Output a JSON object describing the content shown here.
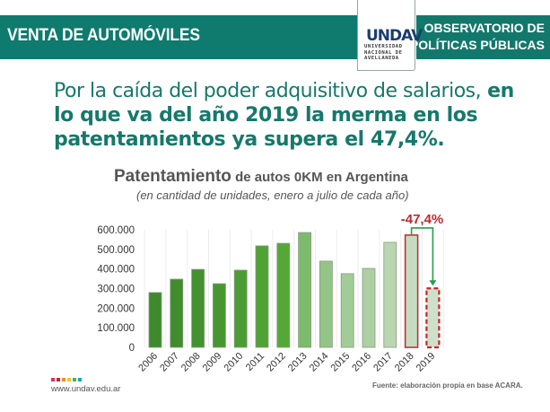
{
  "header": {
    "section_title": "VENTA DE AUTOMÓVILES",
    "observatory_line1": "OBSERVATORIO DE",
    "observatory_line2": "POLÍTICAS PÚBLICAS",
    "logo_mark": "UNDAV",
    "logo_line1": "UNIVERSIDAD",
    "logo_line2": "NACIONAL DE",
    "logo_line3": "AVELLANEDA",
    "banner_color": "#0f7a6e"
  },
  "headline": {
    "light_text": "Por la caída del poder adquisitivo de salarios,",
    "bold_text": "en lo que va del año 2019 la merma en los patentamientos ya supera el 47,4%."
  },
  "chart_data": {
    "type": "bar",
    "title_main": "Patentamiento",
    "title_rest": " de autos 0KM en Argentina",
    "subtitle": "(en cantidad de unidades, enero a julio de cada año)",
    "xlabel": "",
    "ylabel": "",
    "ylim": [
      0,
      600000
    ],
    "yticks": [
      0,
      100000,
      200000,
      300000,
      400000,
      500000,
      600000
    ],
    "ytick_labels": [
      "0",
      "100.000",
      "200.000",
      "300.000",
      "400.000",
      "500.000",
      "600.000"
    ],
    "grid": "vertical",
    "categories": [
      "2006",
      "2007",
      "2008",
      "2009",
      "2010",
      "2011",
      "2012",
      "2013",
      "2014",
      "2015",
      "2016",
      "2017",
      "2018",
      "2019"
    ],
    "values": [
      280000,
      348000,
      398000,
      325000,
      394000,
      518000,
      531000,
      586000,
      440000,
      376000,
      403000,
      536000,
      573000,
      301000
    ],
    "bar_colors": [
      "#3d8a2a",
      "#3f8d2b",
      "#43922e",
      "#479730",
      "#4b9c32",
      "#4fa234",
      "#53a836",
      "#7cbb6a",
      "#93c587",
      "#a2cc97",
      "#adcfa3",
      "#b9d6b1",
      "#c6dcc0",
      "#cfe0ca"
    ],
    "highlight": {
      "from": "2018",
      "to": "2019",
      "label": "-47,4%",
      "label_color": "#c0272d",
      "arrow_color": "#22a04b"
    }
  },
  "footer": {
    "url": "www.undav.edu.ar",
    "source": "Fuente: elaboración propia en base ACARA.",
    "dot_colors": [
      "#d6336c",
      "#c0272d",
      "#f28c28",
      "#f2c230",
      "#4caf50",
      "#1ca3c4"
    ]
  }
}
